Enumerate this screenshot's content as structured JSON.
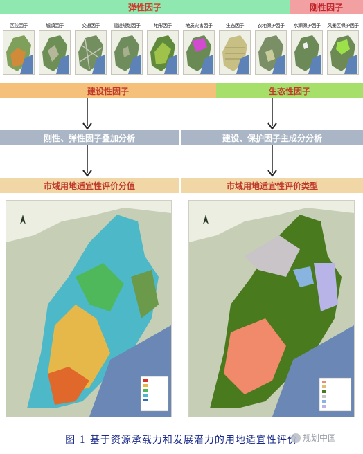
{
  "bands": {
    "elastic": "弹性因子",
    "rigid": "刚性因子"
  },
  "thumbnails": [
    {
      "label": "区位因子"
    },
    {
      "label": "城镇因子"
    },
    {
      "label": "交通因子"
    },
    {
      "label": "建设规划因子"
    },
    {
      "label": "地形因子"
    },
    {
      "label": "地质灾害因子"
    },
    {
      "label": "生态因子"
    },
    {
      "label": "农地保护因子"
    },
    {
      "label": "水源保护因子"
    },
    {
      "label": "风景区保护因子"
    }
  ],
  "factor_groups": {
    "construction": "建设性因子",
    "ecology": "生态性因子"
  },
  "analysis": {
    "overlay": "刚性、弹性因子叠加分析",
    "pca": "建设、保护因子主成分分析"
  },
  "results": {
    "score": "市域用地适宜性评价分值",
    "type": "市域用地适宜性评价类型"
  },
  "caption": "图 1  基于资源承载力和发展潜力的用地适宜性评价",
  "watermark": "规划中国",
  "colors": {
    "elastic_band": "#8ee8b0",
    "rigid_band": "#f3a0a3",
    "construction_band": "#f5c07a",
    "ecology_band": "#a6e06a",
    "analysis_band": "#aab6c6",
    "result_band": "#f0d7a5",
    "caption_text": "#1a2a8a"
  }
}
